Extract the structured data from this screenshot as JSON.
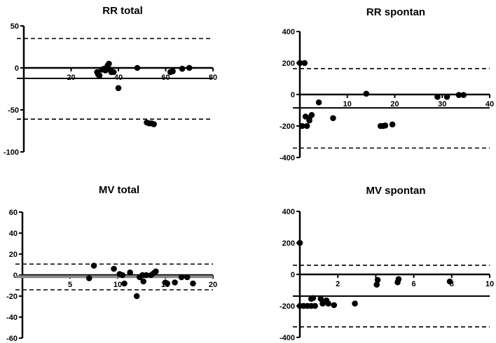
{
  "chart_data": [
    {
      "type": "scatter",
      "title": "RR total",
      "xlabel": "",
      "ylabel": "",
      "xlim": [
        0,
        80
      ],
      "ylim": [
        -100,
        50
      ],
      "xticks": [
        "20",
        "40",
        "60",
        "80"
      ],
      "xtick_values": [
        20,
        40,
        60,
        80
      ],
      "yticks": [
        "50",
        "0",
        "-50",
        "-100"
      ],
      "ytick_values": [
        50,
        0,
        -50,
        -100
      ],
      "bias": -12.5,
      "loa_upper": 35,
      "loa_lower": -61,
      "points": [
        [
          31,
          -5
        ],
        [
          31.5,
          -8
        ],
        [
          32,
          -9
        ],
        [
          33,
          -2
        ],
        [
          34,
          -1
        ],
        [
          34.5,
          -3
        ],
        [
          35,
          0
        ],
        [
          35.5,
          3
        ],
        [
          36,
          5
        ],
        [
          36.5,
          -2
        ],
        [
          37,
          -5
        ],
        [
          38,
          -5
        ],
        [
          40,
          -24
        ],
        [
          48,
          0
        ],
        [
          52,
          -65
        ],
        [
          53,
          -66
        ],
        [
          54,
          -66
        ],
        [
          55,
          -67
        ],
        [
          62,
          -5
        ],
        [
          63,
          -4
        ],
        [
          67,
          -1
        ],
        [
          70,
          0
        ]
      ]
    },
    {
      "type": "scatter",
      "title": "RR spontan",
      "xlabel": "",
      "ylabel": "",
      "xlim": [
        0,
        40
      ],
      "ylim": [
        -400,
        400
      ],
      "xticks": [
        "10",
        "20",
        "30",
        "40"
      ],
      "xtick_values": [
        10,
        20,
        30,
        40
      ],
      "yticks": [
        "400",
        "200",
        "0",
        "-200",
        "-400"
      ],
      "ytick_values": [
        400,
        200,
        0,
        -200,
        -400
      ],
      "bias": -85,
      "loa_upper": 164,
      "loa_lower": -340,
      "points": [
        [
          0,
          200
        ],
        [
          1,
          200
        ],
        [
          0.5,
          -200
        ],
        [
          1.5,
          -200
        ],
        [
          1.2,
          -140
        ],
        [
          2,
          -150
        ],
        [
          2,
          -165
        ],
        [
          2.5,
          -130
        ],
        [
          4,
          -50
        ],
        [
          7,
          -150
        ],
        [
          14,
          5
        ],
        [
          17,
          -200
        ],
        [
          17.5,
          -200
        ],
        [
          18,
          -197
        ],
        [
          19.5,
          -190
        ],
        [
          29,
          -15
        ],
        [
          31,
          -15
        ],
        [
          33.5,
          -3
        ],
        [
          34.5,
          -3
        ]
      ]
    },
    {
      "type": "scatter",
      "title": "MV total",
      "xlabel": "",
      "ylabel": "",
      "xlim": [
        0,
        20
      ],
      "ylim": [
        -60,
        60
      ],
      "xticks": [
        "5",
        "10",
        "15",
        "20"
      ],
      "xtick_values": [
        5,
        10,
        15,
        20
      ],
      "yticks": [
        "60",
        "40",
        "20",
        "0",
        "-20",
        "-40",
        "-60"
      ],
      "ytick_values": [
        60,
        40,
        20,
        0,
        -20,
        -40,
        -60
      ],
      "bias": -1.5,
      "loa_upper": 10.5,
      "loa_lower": -14,
      "points": [
        [
          7,
          -3
        ],
        [
          7.5,
          9
        ],
        [
          9.6,
          6
        ],
        [
          10.2,
          1
        ],
        [
          10.5,
          0
        ],
        [
          10.7,
          -8
        ],
        [
          11.3,
          2.5
        ],
        [
          12,
          -20
        ],
        [
          12.3,
          -2
        ],
        [
          12.6,
          0
        ],
        [
          12.7,
          -6
        ],
        [
          13,
          0
        ],
        [
          13.5,
          0
        ],
        [
          13.8,
          2
        ],
        [
          14,
          3.5
        ],
        [
          15,
          -7
        ],
        [
          15.2,
          -8
        ],
        [
          16,
          -7
        ],
        [
          16.7,
          -2
        ],
        [
          17.3,
          -2
        ],
        [
          17.9,
          -8
        ]
      ]
    },
    {
      "type": "scatter",
      "title": "MV spontan",
      "xlabel": "",
      "ylabel": "",
      "xlim": [
        0,
        10
      ],
      "ylim": [
        -400,
        400
      ],
      "xticks": [
        "2",
        "4",
        "6",
        "8",
        "10"
      ],
      "xtick_values": [
        2,
        4,
        6,
        8,
        10
      ],
      "yticks": [
        "400",
        "200",
        "0",
        "-200",
        "-400"
      ],
      "ytick_values": [
        400,
        200,
        0,
        -200,
        -400
      ],
      "bias": -138,
      "loa_upper": 58,
      "loa_lower": -333,
      "points": [
        [
          0,
          200
        ],
        [
          0,
          -200
        ],
        [
          0.2,
          -200
        ],
        [
          0.4,
          -200
        ],
        [
          0.6,
          -200
        ],
        [
          0.8,
          -200
        ],
        [
          0.6,
          -155
        ],
        [
          0.7,
          -150
        ],
        [
          1.1,
          -155
        ],
        [
          1.2,
          -185
        ],
        [
          1.4,
          -165
        ],
        [
          1.5,
          -185
        ],
        [
          1.8,
          -195
        ],
        [
          2.9,
          -185
        ],
        [
          4.1,
          -35
        ],
        [
          4.05,
          -65
        ],
        [
          5.2,
          -30
        ],
        [
          5.15,
          -50
        ],
        [
          7.9,
          -45
        ]
      ]
    }
  ]
}
